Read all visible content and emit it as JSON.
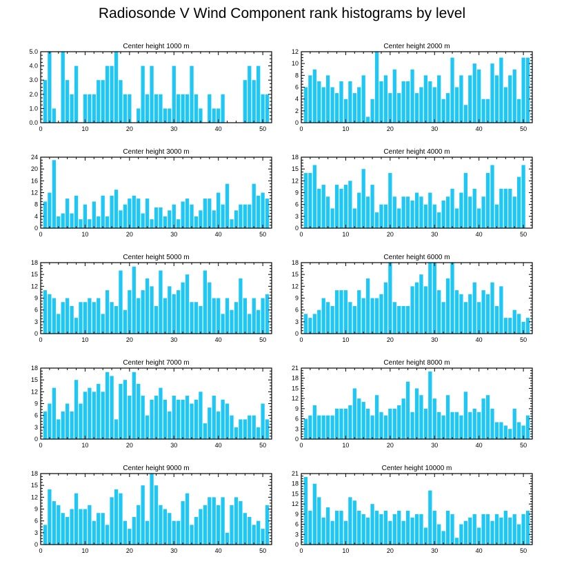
{
  "title": "Radiosonde V Wind Component rank histograms by level",
  "chart_data": [
    {
      "type": "bar",
      "title": "Center height 1000 m",
      "xlim": [
        0,
        52
      ],
      "ylim": [
        0,
        5
      ],
      "yticks": [
        0,
        1,
        2,
        3,
        4,
        5
      ],
      "ytick_labels": [
        "0.0",
        "1.0",
        "2.0",
        "3.0",
        "4.0",
        "5.0"
      ],
      "xticks": [
        0,
        10,
        20,
        30,
        40,
        50
      ],
      "x": [
        1,
        2,
        3,
        4,
        5,
        6,
        7,
        8,
        9,
        10,
        11,
        12,
        13,
        14,
        15,
        16,
        17,
        18,
        19,
        20,
        21,
        22,
        23,
        24,
        25,
        26,
        27,
        28,
        29,
        30,
        31,
        32,
        33,
        34,
        35,
        36,
        37,
        38,
        39,
        40,
        41,
        42,
        43,
        44,
        45,
        46,
        47,
        48,
        49,
        50,
        51
      ],
      "values": [
        3,
        5,
        1,
        0,
        5,
        3,
        2,
        4,
        0,
        2,
        2,
        2,
        3,
        3,
        4,
        4,
        5,
        3,
        2,
        2,
        0,
        1,
        4,
        2,
        4,
        2,
        2,
        1,
        1,
        4,
        2,
        2,
        2,
        4,
        2,
        1,
        0,
        2,
        1,
        1,
        2,
        0,
        0,
        0,
        0,
        3,
        4,
        3,
        4,
        2,
        2
      ]
    },
    {
      "type": "bar",
      "title": "Center height 2000 m",
      "xlim": [
        0,
        52
      ],
      "ylim": [
        0,
        12
      ],
      "yticks": [
        0,
        2,
        4,
        6,
        8,
        10,
        12
      ],
      "ytick_labels": [
        "0",
        "2",
        "4",
        "6",
        "8",
        "10",
        "12"
      ],
      "xticks": [
        0,
        10,
        20,
        30,
        40,
        50
      ],
      "x": [
        1,
        2,
        3,
        4,
        5,
        6,
        7,
        8,
        9,
        10,
        11,
        12,
        13,
        14,
        15,
        16,
        17,
        18,
        19,
        20,
        21,
        22,
        23,
        24,
        25,
        26,
        27,
        28,
        29,
        30,
        31,
        32,
        33,
        34,
        35,
        36,
        37,
        38,
        39,
        40,
        41,
        42,
        43,
        44,
        45,
        46,
        47,
        48,
        49,
        50,
        51
      ],
      "values": [
        6,
        8,
        9,
        7,
        6,
        8,
        6,
        5,
        7,
        4,
        7,
        5,
        6,
        8,
        1,
        4,
        12,
        7,
        8,
        5,
        9,
        5,
        7,
        7,
        9,
        5,
        6,
        8,
        7,
        6,
        8,
        4,
        5,
        11,
        6,
        8,
        3,
        8,
        10,
        9,
        4,
        4,
        10,
        8,
        11,
        6,
        8,
        9,
        4,
        11,
        11
      ]
    },
    {
      "type": "bar",
      "title": "Center height 3000 m",
      "xlim": [
        0,
        52
      ],
      "ylim": [
        0,
        24
      ],
      "yticks": [
        0,
        4,
        8,
        12,
        16,
        20,
        24
      ],
      "ytick_labels": [
        "0",
        "4",
        "8",
        "12",
        "16",
        "20",
        "24"
      ],
      "xticks": [
        0,
        10,
        20,
        30,
        40,
        50
      ],
      "x": [
        1,
        2,
        3,
        4,
        5,
        6,
        7,
        8,
        9,
        10,
        11,
        12,
        13,
        14,
        15,
        16,
        17,
        18,
        19,
        20,
        21,
        22,
        23,
        24,
        25,
        26,
        27,
        28,
        29,
        30,
        31,
        32,
        33,
        34,
        35,
        36,
        37,
        38,
        39,
        40,
        41,
        42,
        43,
        44,
        45,
        46,
        47,
        48,
        49,
        50,
        51
      ],
      "values": [
        9,
        12,
        23,
        4,
        5,
        10,
        5,
        11,
        3,
        8,
        3,
        9,
        4,
        11,
        4,
        11,
        13,
        6,
        8,
        10,
        11,
        10,
        5,
        10,
        3,
        7,
        7,
        4,
        6,
        8,
        3,
        9,
        10,
        8,
        4,
        6,
        10,
        10,
        6,
        12,
        8,
        15,
        3,
        6,
        8,
        8,
        8,
        15,
        11,
        12,
        10
      ]
    },
    {
      "type": "bar",
      "title": "Center height 4000 m",
      "xlim": [
        0,
        52
      ],
      "ylim": [
        0,
        18
      ],
      "yticks": [
        0,
        3,
        6,
        9,
        12,
        15,
        18
      ],
      "ytick_labels": [
        "0",
        "3",
        "6",
        "9",
        "12",
        "15",
        "18"
      ],
      "xticks": [
        0,
        10,
        20,
        30,
        40,
        50
      ],
      "x": [
        1,
        2,
        3,
        4,
        5,
        6,
        7,
        8,
        9,
        10,
        11,
        12,
        13,
        14,
        15,
        16,
        17,
        18,
        19,
        20,
        21,
        22,
        23,
        24,
        25,
        26,
        27,
        28,
        29,
        30,
        31,
        32,
        33,
        34,
        35,
        36,
        37,
        38,
        39,
        40,
        41,
        42,
        43,
        44,
        45,
        46,
        47,
        48,
        49,
        50,
        51
      ],
      "values": [
        14,
        14,
        16,
        10,
        11,
        8,
        5,
        11,
        10,
        11,
        12,
        5,
        9,
        15,
        8,
        11,
        4,
        6,
        6,
        14,
        8,
        5,
        8,
        8,
        7,
        9,
        8,
        6,
        9,
        6,
        4,
        7,
        8,
        10,
        5,
        9,
        14,
        8,
        10,
        5,
        8,
        14,
        16,
        6,
        10,
        10,
        10,
        8,
        13,
        16,
        0
      ]
    },
    {
      "type": "bar",
      "title": "Center height 5000 m",
      "xlim": [
        0,
        52
      ],
      "ylim": [
        0,
        18
      ],
      "yticks": [
        0,
        3,
        6,
        9,
        12,
        15,
        18
      ],
      "ytick_labels": [
        "0",
        "3",
        "6",
        "9",
        "12",
        "15",
        "18"
      ],
      "xticks": [
        0,
        10,
        20,
        30,
        40,
        50
      ],
      "x": [
        1,
        2,
        3,
        4,
        5,
        6,
        7,
        8,
        9,
        10,
        11,
        12,
        13,
        14,
        15,
        16,
        17,
        18,
        19,
        20,
        21,
        22,
        23,
        24,
        25,
        26,
        27,
        28,
        29,
        30,
        31,
        32,
        33,
        34,
        35,
        36,
        37,
        38,
        39,
        40,
        41,
        42,
        43,
        44,
        45,
        46,
        47,
        48,
        49,
        50,
        51
      ],
      "values": [
        11,
        10,
        9,
        5,
        8,
        9,
        7,
        4,
        8,
        8,
        9,
        8,
        9,
        5,
        11,
        8,
        7,
        16,
        6,
        11,
        17,
        9,
        11,
        14,
        12,
        7,
        16,
        9,
        12,
        10,
        11,
        13,
        15,
        8,
        8,
        7,
        16,
        13,
        9,
        9,
        5,
        9,
        6,
        8,
        14,
        9,
        5,
        9,
        6,
        9,
        10
      ]
    },
    {
      "type": "bar",
      "title": "Center height 6000 m",
      "xlim": [
        0,
        52
      ],
      "ylim": [
        0,
        18
      ],
      "yticks": [
        0,
        3,
        6,
        9,
        12,
        15,
        18
      ],
      "ytick_labels": [
        "0",
        "3",
        "6",
        "9",
        "12",
        "15",
        "18"
      ],
      "xticks": [
        0,
        10,
        20,
        30,
        40,
        50
      ],
      "x": [
        1,
        2,
        3,
        4,
        5,
        6,
        7,
        8,
        9,
        10,
        11,
        12,
        13,
        14,
        15,
        16,
        17,
        18,
        19,
        20,
        21,
        22,
        23,
        24,
        25,
        26,
        27,
        28,
        29,
        30,
        31,
        32,
        33,
        34,
        35,
        36,
        37,
        38,
        39,
        40,
        41,
        42,
        43,
        44,
        45,
        46,
        47,
        48,
        49,
        50,
        51
      ],
      "values": [
        5,
        4,
        5,
        6,
        9,
        8,
        7,
        11,
        11,
        11,
        8,
        7,
        11,
        9,
        14,
        9,
        9,
        10,
        13,
        18,
        8,
        7,
        7,
        7,
        12,
        13,
        15,
        12,
        18,
        18,
        11,
        8,
        14,
        18,
        11,
        10,
        8,
        10,
        13,
        8,
        11,
        10,
        13,
        7,
        12,
        4,
        4,
        6,
        5,
        3,
        4
      ]
    },
    {
      "type": "bar",
      "title": "Center height 7000 m",
      "xlim": [
        0,
        52
      ],
      "ylim": [
        0,
        18
      ],
      "yticks": [
        0,
        3,
        6,
        9,
        12,
        15,
        18
      ],
      "ytick_labels": [
        "0",
        "3",
        "6",
        "9",
        "12",
        "15",
        "18"
      ],
      "xticks": [
        0,
        10,
        20,
        30,
        40,
        50
      ],
      "x": [
        1,
        2,
        3,
        4,
        5,
        6,
        7,
        8,
        9,
        10,
        11,
        12,
        13,
        14,
        15,
        16,
        17,
        18,
        19,
        20,
        21,
        22,
        23,
        24,
        25,
        26,
        27,
        28,
        29,
        30,
        31,
        32,
        33,
        34,
        35,
        36,
        37,
        38,
        39,
        40,
        41,
        42,
        43,
        44,
        45,
        46,
        47,
        48,
        49,
        50,
        51
      ],
      "values": [
        7,
        9,
        13,
        5,
        7,
        9,
        7,
        15,
        9,
        12,
        13,
        12,
        14,
        12,
        17,
        16,
        5,
        14,
        15,
        11,
        17,
        14,
        11,
        6,
        10,
        11,
        13,
        10,
        7,
        11,
        10,
        10,
        11,
        9,
        10,
        12,
        4,
        8,
        11,
        7,
        10,
        9,
        6,
        3,
        5,
        5,
        6,
        6,
        3,
        9,
        5
      ]
    },
    {
      "type": "bar",
      "title": "Center height 8000 m",
      "xlim": [
        0,
        52
      ],
      "ylim": [
        0,
        21
      ],
      "yticks": [
        0,
        3,
        6,
        9,
        12,
        15,
        18,
        21
      ],
      "ytick_labels": [
        "0",
        "3",
        "6",
        "9",
        "12",
        "15",
        "18",
        "21"
      ],
      "xticks": [
        0,
        10,
        20,
        30,
        40,
        50
      ],
      "x": [
        1,
        2,
        3,
        4,
        5,
        6,
        7,
        8,
        9,
        10,
        11,
        12,
        13,
        14,
        15,
        16,
        17,
        18,
        19,
        20,
        21,
        22,
        23,
        24,
        25,
        26,
        27,
        28,
        29,
        30,
        31,
        32,
        33,
        34,
        35,
        36,
        37,
        38,
        39,
        40,
        41,
        42,
        43,
        44,
        45,
        46,
        47,
        48,
        49,
        50,
        51
      ],
      "values": [
        6,
        7,
        10,
        7,
        7,
        7,
        7,
        9,
        9,
        9,
        10,
        15,
        12,
        11,
        9,
        7,
        13,
        8,
        7,
        9,
        9,
        10,
        12,
        17,
        8,
        15,
        13,
        9,
        20,
        12,
        8,
        7,
        13,
        8,
        8,
        7,
        14,
        8,
        9,
        8,
        12,
        13,
        9,
        5,
        5,
        4,
        3,
        9,
        5,
        4,
        7
      ]
    },
    {
      "type": "bar",
      "title": "Center height 9000 m",
      "xlim": [
        0,
        52
      ],
      "ylim": [
        0,
        18
      ],
      "yticks": [
        0,
        3,
        6,
        9,
        12,
        15,
        18
      ],
      "ytick_labels": [
        "0",
        "3",
        "6",
        "9",
        "12",
        "15",
        "18"
      ],
      "xticks": [
        0,
        10,
        20,
        30,
        40,
        50
      ],
      "x": [
        1,
        2,
        3,
        4,
        5,
        6,
        7,
        8,
        9,
        10,
        11,
        12,
        13,
        14,
        15,
        16,
        17,
        18,
        19,
        20,
        21,
        22,
        23,
        24,
        25,
        26,
        27,
        28,
        29,
        30,
        31,
        32,
        33,
        34,
        35,
        36,
        37,
        38,
        39,
        40,
        41,
        42,
        43,
        44,
        45,
        46,
        47,
        48,
        49,
        50,
        51
      ],
      "values": [
        5,
        14,
        11,
        10,
        8,
        7,
        9,
        13,
        9,
        9,
        10,
        6,
        8,
        8,
        5,
        12,
        14,
        13,
        6,
        4,
        7,
        10,
        15,
        6,
        18,
        15,
        10,
        9,
        8,
        6,
        6,
        11,
        13,
        5,
        7,
        9,
        10,
        12,
        12,
        10,
        12,
        3,
        10,
        12,
        11,
        8,
        7,
        5,
        6,
        4,
        10
      ]
    },
    {
      "type": "bar",
      "title": "Center height 10000 m",
      "xlim": [
        0,
        52
      ],
      "ylim": [
        0,
        21
      ],
      "yticks": [
        0,
        3,
        6,
        9,
        12,
        15,
        18,
        21
      ],
      "ytick_labels": [
        "0",
        "3",
        "6",
        "9",
        "12",
        "15",
        "18",
        "21"
      ],
      "xticks": [
        0,
        10,
        20,
        30,
        40,
        50
      ],
      "x": [
        1,
        2,
        3,
        4,
        5,
        6,
        7,
        8,
        9,
        10,
        11,
        12,
        13,
        14,
        15,
        16,
        17,
        18,
        19,
        20,
        21,
        22,
        23,
        24,
        25,
        26,
        27,
        28,
        29,
        30,
        31,
        32,
        33,
        34,
        35,
        36,
        37,
        38,
        39,
        40,
        41,
        42,
        43,
        44,
        45,
        46,
        47,
        48,
        49,
        50,
        51
      ],
      "values": [
        20,
        10,
        18,
        14,
        8,
        11,
        7,
        10,
        10,
        7,
        14,
        13,
        10,
        9,
        8,
        12,
        10,
        9,
        10,
        7,
        9,
        10,
        7,
        10,
        8,
        9,
        9,
        5,
        16,
        10,
        6,
        4,
        10,
        9,
        2,
        6,
        7,
        8,
        9,
        5,
        9,
        9,
        7,
        9,
        8,
        10,
        8,
        9,
        6,
        9,
        10
      ]
    }
  ]
}
